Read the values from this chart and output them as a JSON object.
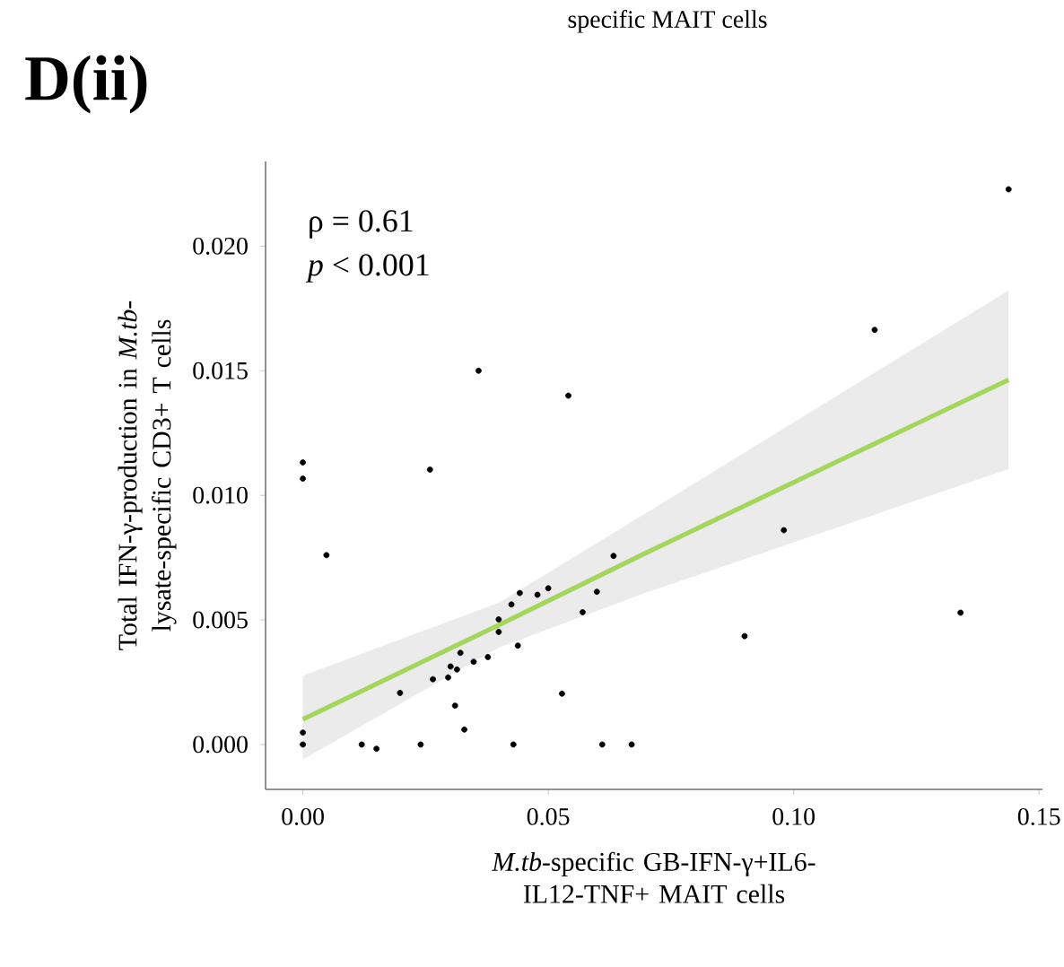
{
  "chart_data": {
    "type": "scatter",
    "title": "D(ii)",
    "xlabel": "*M.tb*-specific GB-IFN-γ+IL6-IL12-TNF+ MAIT cells",
    "ylabel": "Total IFN-γ-production in *M.tb*-lysate-specific CD3+ T cells",
    "annotations": [
      "specific MAIT cells",
      "ρ = 0.61",
      "*p* < 0.001"
    ],
    "xlim": [
      -0.0076,
      0.1507
    ],
    "ylim": [
      -0.0018,
      0.0234
    ],
    "xticks": [
      {
        "value": 0,
        "label": "0.00"
      },
      {
        "value": 0.05,
        "label": "0.05"
      },
      {
        "value": 0.1,
        "label": "0.10"
      },
      {
        "value": 0.15,
        "label": "0.15"
      }
    ],
    "yticks": [
      {
        "value": 0,
        "label": "0.000"
      },
      {
        "value": 0.005,
        "label": "0.005"
      },
      {
        "value": 0.01,
        "label": "0.010"
      },
      {
        "value": 0.015,
        "label": "0.015"
      },
      {
        "value": 0.02,
        "label": "0.020"
      }
    ],
    "grid": false,
    "series": [
      {
        "color": "#000000",
        "marker": "circle",
        "x": [
          0.0358,
          0.0541,
          0,
          0,
          0.0259,
          0.0048,
          0.0633,
          0.0442,
          0.0478,
          0.05,
          0.0425,
          0.0599,
          0.057,
          0.0399,
          0.0399,
          0.0438,
          0.0321,
          0.0377,
          0.0348,
          0.0301,
          0.0314,
          0.0296,
          0.0265,
          0.0198,
          0.0528,
          0.031,
          0,
          0,
          0.0329,
          0.012,
          0.015,
          0.024,
          0.0429,
          0.061,
          0.067,
          0.1438,
          0.1165,
          0.098,
          0.09,
          0.134
        ],
        "values": [
          0.015,
          0.014,
          0.01132,
          0.01067,
          0.01103,
          0.0076,
          0.00757,
          0.00608,
          0.00601,
          0.00627,
          0.00562,
          0.00613,
          0.00531,
          0.00502,
          0.00452,
          0.00397,
          0.00368,
          0.00351,
          0.00332,
          0.00313,
          0.00301,
          0.00269,
          0.00262,
          0.00207,
          0.00204,
          0.00156,
          0.00048,
          0,
          0.0006,
          0,
          -0.00017,
          0,
          0,
          0,
          0,
          0.02228,
          0.01664,
          0.0086,
          0.00435,
          0.00529
        ]
      },
      {
        "type": "line",
        "color": "#a4d65e",
        "marker": "none",
        "line_style": "solid",
        "x": [
          0,
          0.04,
          0.07,
          0.1438
        ],
        "values": [
          0.00101,
          0.0048,
          0.0077,
          0.01464
        ],
        "lower": [
          -0.0006,
          0.0039,
          0.0061,
          0.01106
        ],
        "upper": [
          0.00276,
          0.0057,
          0.0093,
          0.01822
        ]
      }
    ]
  }
}
